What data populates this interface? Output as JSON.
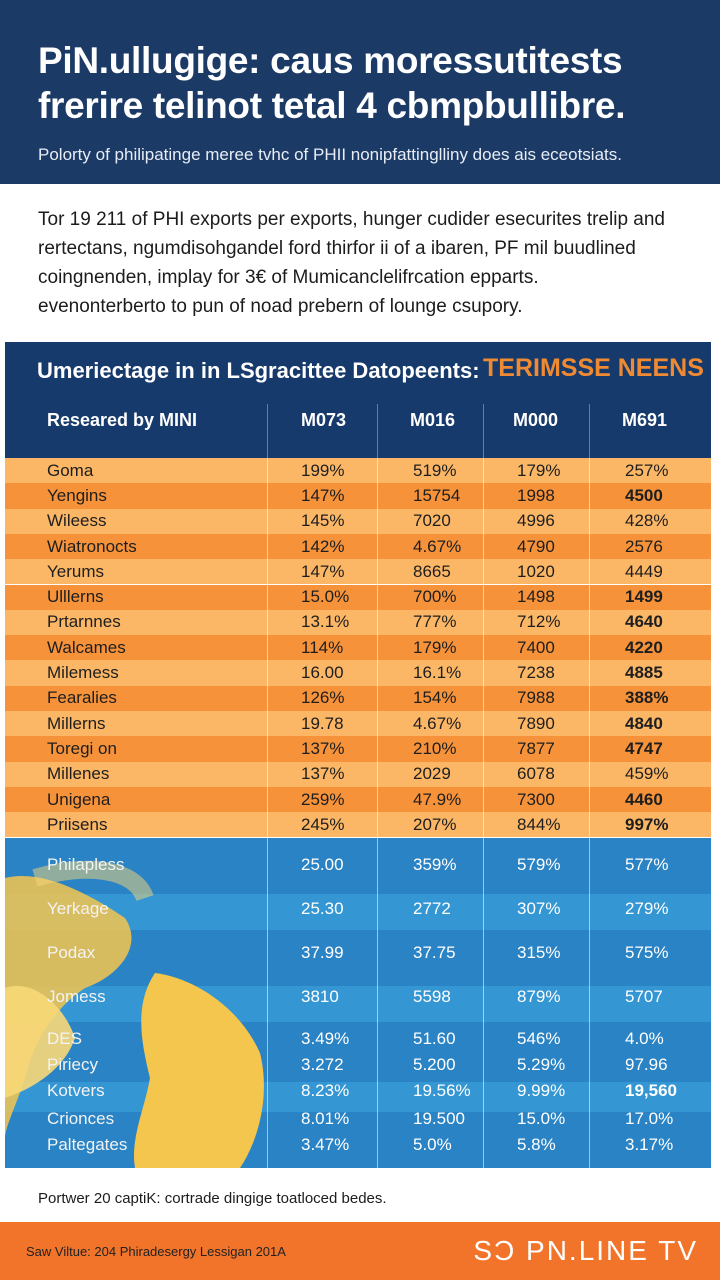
{
  "header": {
    "title_line1": "PiN.ullugige: caus moressutitests",
    "title_line2": "frerire telinot tetal 4 cbmpbullibre.",
    "subtitle": "Polorty of philipatinge meree tvhc of PHII nonipfattinglliny does ais eceotsiats."
  },
  "intro": {
    "lines": [
      "Tor 19 211 of PHI exports per exports, hunger cudider esecurites trelip and",
      "rertectans, ngumdisohgandel ford thirfor ii of a ibaren, PF mil buudlined",
      "coingnenden, implay for 3€ of Mumicanclelifrcation epparts.",
      "evenonterberto to pun of noad prebern of lounge csupory."
    ]
  },
  "table": {
    "title": "Umeriectage in in LSgracittee Datopeents:",
    "tag": "TERIMSSE NEENS",
    "columns": [
      "Researed by MINI",
      "M073",
      "M016",
      "M000",
      "M691"
    ],
    "colors": {
      "header": "#163a6b",
      "orange_light": "#fbb766",
      "orange_dark": "#f5923a",
      "blue": "#2f8dcc",
      "tag": "#f08a32"
    },
    "orange_rows": [
      {
        "name": "Goma",
        "c1": "199%",
        "c2": "519%",
        "c3": "179%",
        "c4": "257%",
        "bold": false
      },
      {
        "name": "Yengins",
        "c1": "147%",
        "c2": "15754",
        "c3": "1998",
        "c4": "4500",
        "bold": true
      },
      {
        "name": "Wileess",
        "c1": "145%",
        "c2": "7020",
        "c3": "4996",
        "c4": "428%",
        "bold": false
      },
      {
        "name": "Wiatronocts",
        "c1": "142%",
        "c2": "4.67%",
        "c3": "4790",
        "c4": "2576",
        "bold": false
      },
      {
        "name": "Yerums",
        "c1": "147%",
        "c2": "8665",
        "c3": "1020",
        "c4": "4449",
        "bold": false
      },
      {
        "name": "Ulllerns",
        "c1": "15.0%",
        "c2": "700%",
        "c3": "1498",
        "c4": "1499",
        "bold": true
      },
      {
        "name": "Prtarnnes",
        "c1": "13.1%",
        "c2": "777%",
        "c3": "712%",
        "c4": "4640",
        "bold": true
      },
      {
        "name": "Walcames",
        "c1": "114%",
        "c2": "179%",
        "c3": "7400",
        "c4": "4220",
        "bold": true
      },
      {
        "name": "Milemess",
        "c1": "16.00",
        "c2": "16.1%",
        "c3": "7238",
        "c4": "4885",
        "bold": true
      },
      {
        "name": "Fearalies",
        "c1": "126%",
        "c2": "154%",
        "c3": "7988",
        "c4": "388%",
        "bold": true
      },
      {
        "name": "Millerns",
        "c1": "19.78",
        "c2": "4.67%",
        "c3": "7890",
        "c4": "4840",
        "bold": true
      },
      {
        "name": "Toregi on",
        "c1": "137%",
        "c2": "210%",
        "c3": "7877",
        "c4": "4747",
        "bold": true
      },
      {
        "name": "Millenes",
        "c1": "137%",
        "c2": "2029",
        "c3": "6078",
        "c4": "459%",
        "bold": false
      },
      {
        "name": "Unigena",
        "c1": "259%",
        "c2": "47.9%",
        "c3": "7300",
        "c4": "4460",
        "bold": true
      },
      {
        "name": "Priisens",
        "c1": "245%",
        "c2": "207%",
        "c3": "844%",
        "c4": "997%",
        "bold": true
      }
    ],
    "blue_rows": [
      {
        "name": "Philapless",
        "c1": "25.00",
        "c2": "359%",
        "c3": "579%",
        "c4": "577%",
        "bold": false
      },
      {
        "name": "Yerkage",
        "c1": "25.30",
        "c2": "2772",
        "c3": "307%",
        "c4": "279%",
        "bold": false
      },
      {
        "name": "Podax",
        "c1": "37.99",
        "c2": "37.75",
        "c3": "315%",
        "c4": "575%",
        "bold": false
      },
      {
        "name": "Jomess",
        "c1": "3810",
        "c2": "5598",
        "c3": "879%",
        "c4": "5707",
        "bold": false
      },
      {
        "name": "DES",
        "c1": "3.49%",
        "c2": "51.60",
        "c3": "546%",
        "c4": "4.0%",
        "bold": false
      },
      {
        "name": "Piriecy",
        "c1": "3.272",
        "c2": "5.200",
        "c3": "5.29%",
        "c4": "97.96",
        "bold": false
      },
      {
        "name": "Kotvers",
        "c1": "8.23%",
        "c2": "19.56%",
        "c3": "9.99%",
        "c4": "19,560",
        "bold": true
      },
      {
        "name": "Crionces",
        "c1": "8.01%",
        "c2": "19.500",
        "c3": "15.0%",
        "c4": "17.0%",
        "bold": false
      },
      {
        "name": "Paltegates",
        "c1": "3.47%",
        "c2": "5.0%",
        "c3": "5.8%",
        "c4": "3.17%",
        "bold": false
      }
    ]
  },
  "footnote": "Portwer 20 captiK: cortrade dingige toatloced bedes.",
  "footer": {
    "source": "Saw Viltue: 204 Phiradesergy Lessigan 201A",
    "brand": "SƆ PN.LINE TV",
    "color": "#f2742a"
  }
}
